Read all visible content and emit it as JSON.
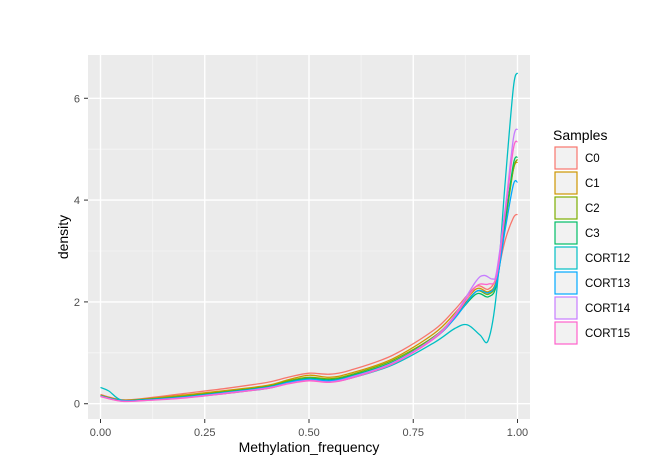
{
  "chart_data": {
    "type": "line",
    "xlabel": "Methylation_frequency",
    "ylabel": "density",
    "xlim": [
      -0.03,
      1.03
    ],
    "ylim": [
      -0.3,
      6.85
    ],
    "xticks": [
      0.0,
      0.25,
      0.5,
      0.75,
      1.0
    ],
    "xtick_labels": [
      "0.00",
      "0.25",
      "0.50",
      "0.75",
      "1.00"
    ],
    "yticks": [
      0,
      2,
      4,
      6
    ],
    "ytick_labels": [
      "0",
      "2",
      "4",
      "6"
    ],
    "grid": true,
    "legend_title": "Samples",
    "legend_position": "right",
    "series": [
      {
        "name": "C0",
        "color": "#F8766D",
        "x": [
          0.0,
          0.05,
          0.1,
          0.2,
          0.3,
          0.4,
          0.45,
          0.5,
          0.55,
          0.6,
          0.7,
          0.8,
          0.85,
          0.9,
          0.93,
          0.95,
          0.97,
          0.99,
          1.0
        ],
        "y": [
          0.18,
          0.08,
          0.1,
          0.2,
          0.3,
          0.42,
          0.52,
          0.6,
          0.58,
          0.66,
          0.95,
          1.45,
          1.85,
          2.3,
          2.25,
          2.5,
          3.2,
          3.65,
          3.72
        ]
      },
      {
        "name": "C1",
        "color": "#CD9600",
        "x": [
          0.0,
          0.05,
          0.1,
          0.2,
          0.3,
          0.4,
          0.45,
          0.5,
          0.55,
          0.6,
          0.7,
          0.8,
          0.85,
          0.9,
          0.93,
          0.95,
          0.97,
          0.99,
          1.0
        ],
        "y": [
          0.17,
          0.07,
          0.09,
          0.17,
          0.26,
          0.36,
          0.47,
          0.56,
          0.52,
          0.6,
          0.88,
          1.38,
          1.78,
          2.25,
          2.2,
          2.45,
          3.6,
          4.6,
          4.75
        ]
      },
      {
        "name": "C2",
        "color": "#7CAE00",
        "x": [
          0.0,
          0.05,
          0.1,
          0.2,
          0.3,
          0.4,
          0.45,
          0.5,
          0.55,
          0.6,
          0.7,
          0.8,
          0.85,
          0.9,
          0.93,
          0.95,
          0.97,
          0.99,
          1.0
        ],
        "y": [
          0.16,
          0.07,
          0.08,
          0.15,
          0.24,
          0.34,
          0.45,
          0.52,
          0.49,
          0.57,
          0.85,
          1.32,
          1.72,
          2.2,
          2.15,
          2.4,
          3.5,
          4.6,
          4.8
        ]
      },
      {
        "name": "C3",
        "color": "#00BE67",
        "x": [
          0.0,
          0.05,
          0.1,
          0.2,
          0.3,
          0.4,
          0.45,
          0.5,
          0.55,
          0.6,
          0.7,
          0.8,
          0.85,
          0.9,
          0.93,
          0.95,
          0.97,
          0.99,
          1.0
        ],
        "y": [
          0.16,
          0.06,
          0.08,
          0.14,
          0.23,
          0.33,
          0.43,
          0.5,
          0.47,
          0.55,
          0.82,
          1.3,
          1.7,
          2.15,
          2.1,
          2.35,
          3.55,
          4.7,
          4.85
        ]
      },
      {
        "name": "CORT12",
        "color": "#00BFC4",
        "x": [
          0.0,
          0.02,
          0.05,
          0.1,
          0.2,
          0.3,
          0.4,
          0.45,
          0.5,
          0.55,
          0.6,
          0.7,
          0.8,
          0.85,
          0.88,
          0.91,
          0.93,
          0.95,
          0.97,
          0.99,
          1.0
        ],
        "y": [
          0.32,
          0.25,
          0.07,
          0.07,
          0.12,
          0.2,
          0.3,
          0.4,
          0.46,
          0.43,
          0.5,
          0.76,
          1.2,
          1.48,
          1.55,
          1.35,
          1.25,
          2.2,
          4.3,
          6.2,
          6.5
        ]
      },
      {
        "name": "CORT13",
        "color": "#00A9FF",
        "x": [
          0.0,
          0.05,
          0.1,
          0.2,
          0.3,
          0.4,
          0.45,
          0.5,
          0.55,
          0.6,
          0.7,
          0.8,
          0.85,
          0.9,
          0.93,
          0.95,
          0.97,
          0.99,
          1.0
        ],
        "y": [
          0.15,
          0.06,
          0.07,
          0.13,
          0.22,
          0.32,
          0.42,
          0.48,
          0.45,
          0.53,
          0.8,
          1.28,
          1.68,
          2.2,
          2.18,
          2.4,
          3.4,
          4.3,
          4.35
        ]
      },
      {
        "name": "CORT14",
        "color": "#C77CFF",
        "x": [
          0.0,
          0.05,
          0.1,
          0.2,
          0.3,
          0.4,
          0.45,
          0.5,
          0.55,
          0.6,
          0.7,
          0.8,
          0.85,
          0.9,
          0.92,
          0.94,
          0.95,
          0.97,
          0.99,
          1.0
        ],
        "y": [
          0.15,
          0.05,
          0.06,
          0.12,
          0.21,
          0.31,
          0.4,
          0.46,
          0.43,
          0.52,
          0.8,
          1.3,
          1.75,
          2.4,
          2.52,
          2.45,
          2.6,
          3.8,
          5.2,
          5.4
        ]
      },
      {
        "name": "CORT15",
        "color": "#FF61CC",
        "x": [
          0.0,
          0.05,
          0.1,
          0.2,
          0.3,
          0.4,
          0.45,
          0.5,
          0.55,
          0.6,
          0.7,
          0.8,
          0.85,
          0.9,
          0.93,
          0.95,
          0.97,
          0.99,
          1.0
        ],
        "y": [
          0.14,
          0.05,
          0.06,
          0.11,
          0.2,
          0.3,
          0.39,
          0.45,
          0.42,
          0.5,
          0.78,
          1.28,
          1.72,
          2.3,
          2.35,
          2.5,
          3.7,
          5.0,
          5.15
        ]
      }
    ]
  }
}
